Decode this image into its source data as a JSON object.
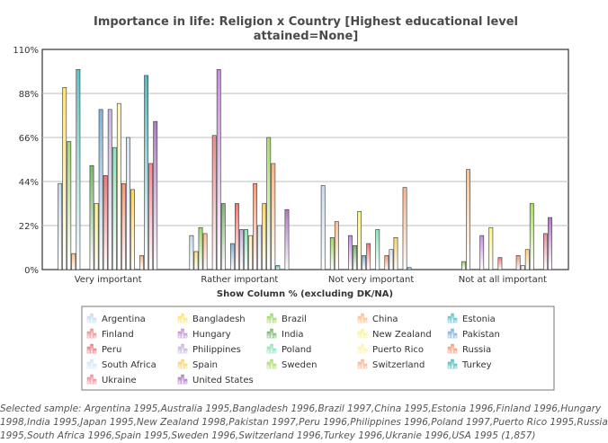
{
  "chart_data": {
    "type": "bar",
    "title_lines": [
      "Importance in life: Religion x Country [Highest educational level",
      "attained=None]"
    ],
    "xlabel": "Show Column % (excluding DK/NA)",
    "ylabel": "",
    "ylim": [
      0,
      110
    ],
    "yticks": [
      "0%",
      "22%",
      "44%",
      "66%",
      "88%",
      "110%"
    ],
    "grid": true,
    "legend_position": "bottom",
    "categories": [
      "Very important",
      "Rather important",
      "Not very important",
      "Not at all important"
    ],
    "series": [
      {
        "name": "Argentina",
        "color": "#c6dbef",
        "values": [
          43,
          17,
          42,
          0
        ]
      },
      {
        "name": "Bangladesh",
        "color": "#fbe37a",
        "values": [
          91,
          9,
          0,
          0
        ]
      },
      {
        "name": "Brazil",
        "color": "#a1d76a",
        "values": [
          64,
          21,
          16,
          4
        ]
      },
      {
        "name": "China",
        "color": "#fbbf8f",
        "values": [
          8,
          18,
          24,
          50
        ]
      },
      {
        "name": "Estonia",
        "color": "#5fc4c4",
        "values": [
          100,
          0,
          0,
          0
        ]
      },
      {
        "name": "Finland",
        "color": "#f28b8b",
        "values": [
          0,
          67,
          0,
          0
        ]
      },
      {
        "name": "Hungary",
        "color": "#c58fd6",
        "values": [
          0,
          100,
          17,
          17
        ]
      },
      {
        "name": "India",
        "color": "#74b96a",
        "values": [
          52,
          33,
          12,
          0
        ]
      },
      {
        "name": "New Zealand",
        "color": "#fbf38a",
        "values": [
          33,
          0,
          29,
          21
        ]
      },
      {
        "name": "Pakistan",
        "color": "#7fb2da",
        "values": [
          80,
          13,
          7,
          0
        ]
      },
      {
        "name": "Peru",
        "color": "#e87c7c",
        "values": [
          47,
          33,
          13,
          6
        ]
      },
      {
        "name": "Philippines",
        "color": "#c7b2de",
        "values": [
          80,
          20,
          0,
          0
        ]
      },
      {
        "name": "Poland",
        "color": "#8fe0b8",
        "values": [
          61,
          20,
          20,
          0
        ]
      },
      {
        "name": "Puerto Rico",
        "color": "#fff1b0",
        "values": [
          83,
          17,
          0,
          0
        ]
      },
      {
        "name": "Russia",
        "color": "#f59a7a",
        "values": [
          43,
          43,
          7,
          7
        ]
      },
      {
        "name": "South Africa",
        "color": "#d4e4f4",
        "values": [
          66,
          22,
          10,
          2
        ]
      },
      {
        "name": "Spain",
        "color": "#fbd36a",
        "values": [
          40,
          33,
          16,
          10
        ]
      },
      {
        "name": "Sweden",
        "color": "#a6dd6a",
        "values": [
          0,
          66,
          0,
          33
        ]
      },
      {
        "name": "Switzerland",
        "color": "#f7b58a",
        "values": [
          7,
          53,
          41,
          0
        ]
      },
      {
        "name": "Turkey",
        "color": "#4fbcc0",
        "values": [
          97,
          2,
          1,
          0
        ]
      },
      {
        "name": "Ukraine",
        "color": "#f08a9a",
        "values": [
          53,
          0,
          0,
          18
        ]
      },
      {
        "name": "United States",
        "color": "#b07ac7",
        "values": [
          74,
          30,
          0,
          26
        ]
      }
    ]
  },
  "footnote_lines": [
    "Selected sample: Argentina 1995,Australia 1995,Bangladesh 1996,Brazil 1997,China 1995,Estonia 1996,Finland 1996,Hungary",
    "1998,India 1995,Japan 1995,New Zealand 1998,Pakistan 1997,Peru 1996,Philippines 1996,Poland 1997,Puerto Rico 1995,Russia",
    "1995,South Africa 1996,Spain 1995,Sweden 1996,Switzerland 1996,Turkey 1996,Ukranie 1996,USA 1995 (1,857)"
  ]
}
